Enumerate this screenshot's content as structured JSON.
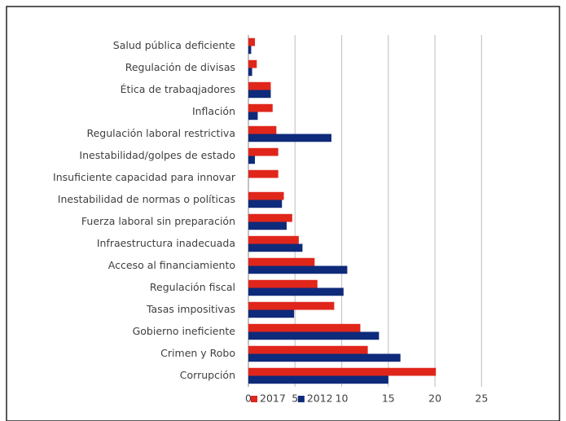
{
  "chart_data": {
    "type": "bar",
    "orientation": "horizontal",
    "categories": [
      "Salud pública deficiente",
      "Regulación de divisas",
      "Ética de trabaqjadores",
      "Inflación",
      "Regulación laboral restrictiva",
      "Inestabilidad/golpes de estado",
      "Insuficiente capacidad para innovar",
      "Inestabilidad de normas o políticas",
      "Fuerza laboral sin preparación",
      "Infraestructura inadecuada",
      "Acceso al financiamiento",
      "Regulación fiscal",
      "Tasas impositivas",
      "Gobierno ineficiente",
      "Crimen y Robo",
      "Corrupción"
    ],
    "series": [
      {
        "name": "2017",
        "color": "#e0261b",
        "values": [
          0.7,
          0.9,
          2.4,
          2.6,
          3.0,
          3.2,
          3.2,
          3.8,
          4.7,
          5.4,
          7.1,
          7.4,
          9.2,
          12.0,
          12.8,
          20.1
        ]
      },
      {
        "name": "2012",
        "color": "#0e2a7a",
        "values": [
          0.3,
          0.4,
          2.4,
          1.0,
          8.9,
          0.7,
          0,
          3.6,
          4.1,
          5.8,
          10.6,
          10.2,
          4.9,
          14.0,
          16.3,
          15.0
        ]
      }
    ],
    "xlim": [
      0,
      27.5
    ],
    "xticks": [
      0,
      5,
      10,
      15,
      20,
      25
    ],
    "grid": true,
    "legend": "bottom"
  }
}
